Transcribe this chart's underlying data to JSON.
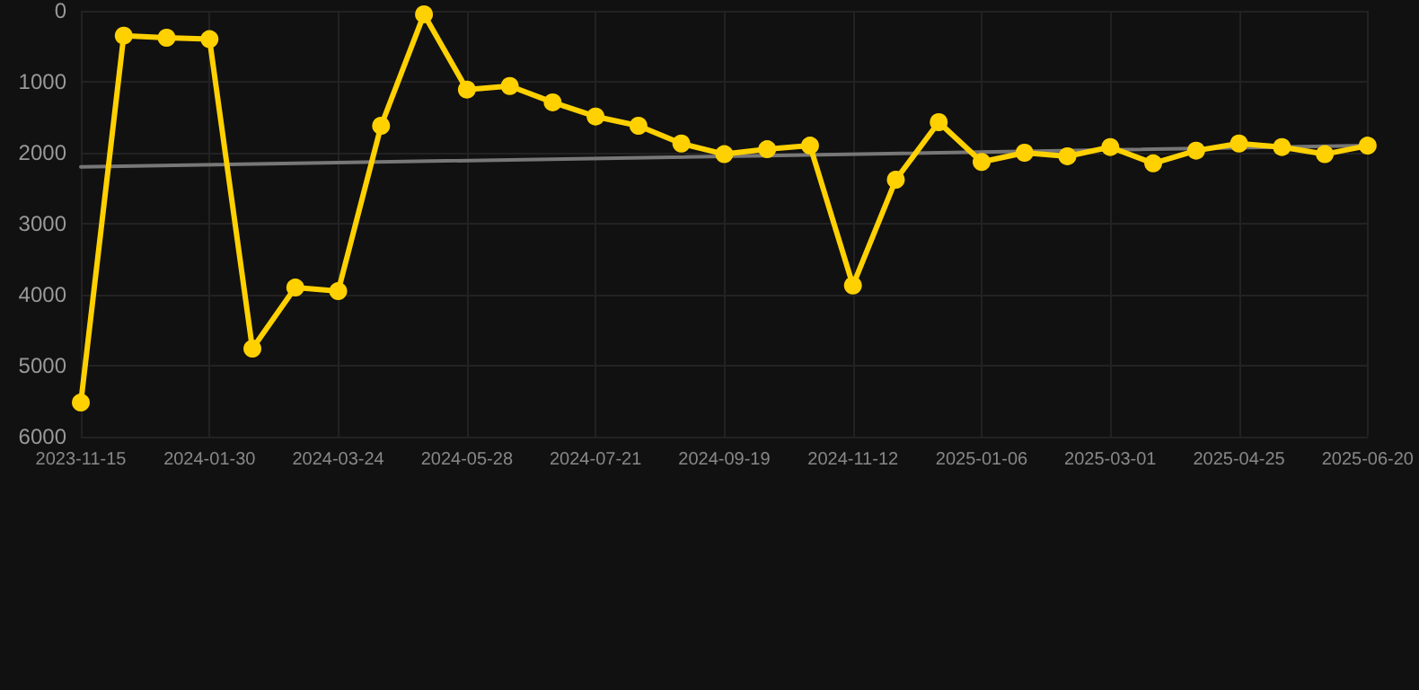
{
  "chart_data": {
    "type": "line",
    "categories": [
      "2023-11-15",
      null,
      null,
      "2024-01-30",
      null,
      null,
      "2024-03-24",
      null,
      null,
      "2024-05-28",
      null,
      null,
      "2024-07-21",
      null,
      null,
      "2024-09-19",
      null,
      null,
      "2024-11-12",
      null,
      null,
      "2025-01-06",
      null,
      null,
      "2025-03-01",
      null,
      null,
      "2025-04-25",
      null,
      null,
      "2025-06-20"
    ],
    "series": [
      {
        "color": "#ffd100",
        "values": [
          5520,
          350,
          380,
          400,
          4760,
          3900,
          3950,
          1620,
          50,
          1110,
          1060,
          1290,
          1490,
          1620,
          1870,
          2020,
          1950,
          1900,
          3870,
          2380,
          1570,
          2130,
          2000,
          2050,
          1920,
          2150,
          1970,
          1870,
          1920,
          2020,
          1900
        ]
      },
      {
        "type": "line",
        "color": "#777777",
        "values": [
          2200,
          null,
          null,
          null,
          null,
          null,
          null,
          null,
          null,
          null,
          null,
          null,
          null,
          null,
          null,
          null,
          null,
          null,
          null,
          null,
          null,
          null,
          null,
          null,
          null,
          null,
          null,
          null,
          null,
          null,
          1900
        ],
        "marker": "none"
      }
    ],
    "ylim": [
      6000,
      0
    ],
    "yticks": [
      0,
      1000,
      2000,
      3000,
      4000,
      5000,
      6000
    ],
    "grid": true,
    "marker": "circle",
    "line_style": "solid"
  }
}
